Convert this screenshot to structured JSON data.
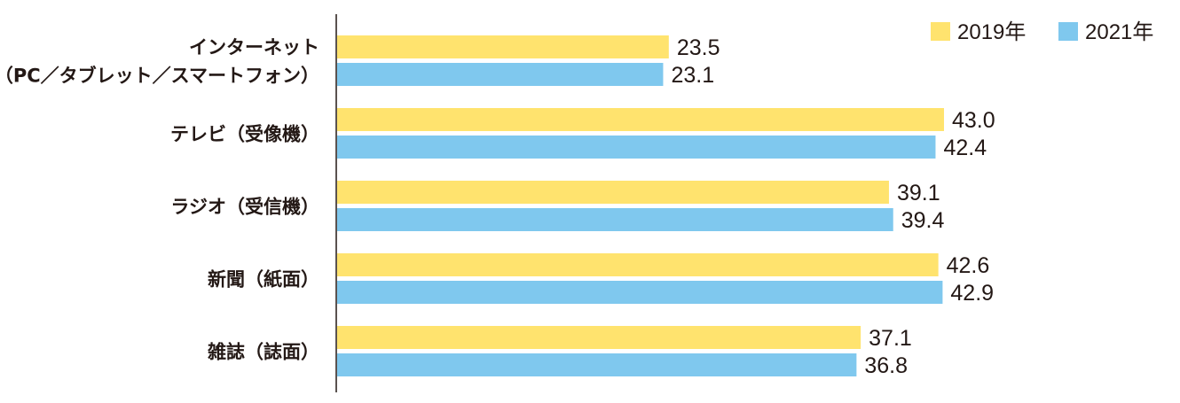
{
  "chart_data": {
    "type": "bar",
    "orientation": "horizontal",
    "categories": [
      [
        "インターネット",
        "（PC／タブレット／スマートフォン）"
      ],
      [
        "テレビ（受像機）"
      ],
      [
        "ラジオ（受信機）"
      ],
      [
        "新聞（紙面）"
      ],
      [
        "雑誌（誌面）"
      ]
    ],
    "series": [
      {
        "name": "2019年",
        "color": "#FFE36E",
        "values": [
          23.5,
          43.0,
          39.1,
          42.6,
          37.1
        ],
        "labels": [
          "23.5",
          "43.0",
          "39.1",
          "42.6",
          "37.1"
        ]
      },
      {
        "name": "2021年",
        "color": "#7FC8EE",
        "values": [
          23.1,
          42.4,
          39.4,
          42.9,
          36.8
        ],
        "labels": [
          "23.1",
          "42.4",
          "39.4",
          "42.9",
          "36.8"
        ]
      }
    ],
    "xlim": [
      0,
      44
    ],
    "grid": false,
    "legend_position": "top-right",
    "title": "",
    "xlabel": "",
    "ylabel": ""
  },
  "colors": {
    "axis": "#231815",
    "text": "#231815"
  }
}
